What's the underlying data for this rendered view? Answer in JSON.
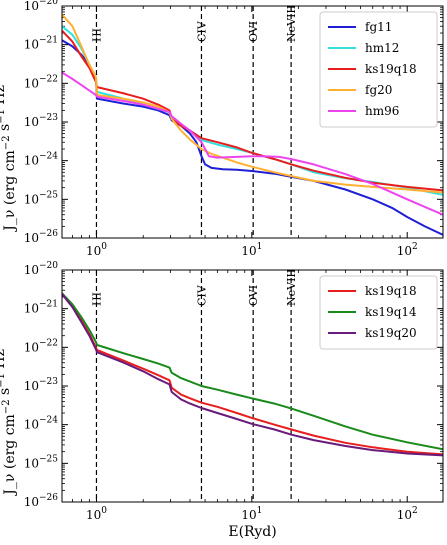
{
  "chart_data": [
    {
      "type": "line",
      "panel": "top",
      "xscale": "log",
      "yscale": "log",
      "xlim": [
        0.6,
        170
      ],
      "ylim": [
        1e-26,
        1e-20
      ],
      "xlabel": "",
      "ylabel": "J_ν (erg cm⁻² s⁻¹ Hz⁻¹ Sr⁻¹)",
      "x_ticks": [
        {
          "value": 1,
          "label": "10^0"
        },
        {
          "value": 10,
          "label": "10^1"
        },
        {
          "value": 100,
          "label": "10^2"
        }
      ],
      "y_ticks": [
        {
          "value": 1e-20,
          "label": "10^-20"
        },
        {
          "value": 1e-21,
          "label": "10^-21"
        },
        {
          "value": 1e-22,
          "label": "10^-22"
        },
        {
          "value": 1e-23,
          "label": "10^-23"
        },
        {
          "value": 1e-24,
          "label": "10^-24"
        },
        {
          "value": 1e-25,
          "label": "10^-25"
        },
        {
          "value": 1e-26,
          "label": "10^-26"
        }
      ],
      "vlines": [
        {
          "x": 1.0,
          "label": "HI"
        },
        {
          "x": 4.74,
          "label": "CIV"
        },
        {
          "x": 10.2,
          "label": "OVI"
        },
        {
          "x": 17.9,
          "label": "NeVIII"
        }
      ],
      "legend": "top-right",
      "series": [
        {
          "name": "fg11",
          "color": "#1f1fd6",
          "x": [
            0.6,
            0.7,
            0.8,
            0.9,
            0.99,
            1.01,
            1.5,
            2.0,
            2.5,
            2.95,
            3.05,
            3.5,
            4.0,
            4.4,
            4.74,
            5.0,
            5.5,
            6.5,
            8.0,
            10.0,
            14.0,
            18.0,
            25.0,
            40.0,
            60.0,
            80.0,
            100.0,
            130.0,
            170.0
          ],
          "y": [
            1.3e-21,
            9e-22,
            5.5e-22,
            3e-22,
            1.4e-22,
            4e-23,
            3e-23,
            2.5e-23,
            2e-23,
            1.5e-23,
            1.1e-23,
            8e-24,
            5e-24,
            3e-24,
            1.3e-24,
            8e-25,
            6.5e-25,
            6e-25,
            5.8e-25,
            5.4e-25,
            4.6e-25,
            3.8e-25,
            3e-25,
            1.8e-25,
            1e-25,
            6e-26,
            3.5e-26,
            2e-26,
            1.2e-26
          ]
        },
        {
          "name": "hm12",
          "color": "#33e0e0",
          "x": [
            0.6,
            0.7,
            0.8,
            0.9,
            0.99,
            1.01,
            1.5,
            2.0,
            2.95,
            3.05,
            4.0,
            4.74,
            6.0,
            8.0,
            10.0,
            14.0,
            18.0,
            25.0,
            40.0,
            60.0,
            100.0,
            170.0
          ],
          "y": [
            3e-21,
            1.8e-21,
            8e-22,
            3e-22,
            1.3e-22,
            6e-23,
            4e-23,
            2.8e-23,
            1.8e-23,
            1.2e-23,
            6e-24,
            3.4e-24,
            2.6e-24,
            2e-24,
            1.6e-24,
            1.1e-24,
            8e-25,
            5e-25,
            3.5e-25,
            2.8e-25,
            2e-25,
            1.3e-25
          ]
        },
        {
          "name": "ks19q18",
          "color": "#e81e1e",
          "x": [
            0.6,
            0.7,
            0.8,
            0.9,
            0.99,
            1.01,
            1.5,
            2.0,
            2.5,
            2.95,
            3.05,
            3.5,
            4.0,
            4.74,
            6.0,
            8.0,
            10.0,
            14.0,
            18.0,
            25.0,
            40.0,
            60.0,
            100.0,
            170.0
          ],
          "y": [
            2.3e-21,
            1.2e-21,
            5e-22,
            2.5e-22,
            1.1e-22,
            8e-23,
            5.5e-23,
            4e-23,
            2.8e-23,
            2e-23,
            1.3e-23,
            8e-24,
            6e-24,
            3.8e-24,
            3e-24,
            2.2e-24,
            1.6e-24,
            1.1e-24,
            8e-25,
            5.5e-25,
            3.6e-25,
            2.7e-25,
            2.1e-25,
            1.7e-25
          ]
        },
        {
          "name": "fg20",
          "color": "#ffb030",
          "x": [
            0.6,
            0.7,
            0.8,
            0.9,
            0.99,
            1.01,
            1.5,
            2.0,
            2.5,
            2.95,
            3.05,
            3.5,
            4.0,
            4.74,
            5.5,
            6.5,
            8.0,
            10.0,
            14.0,
            18.0,
            25.0,
            40.0,
            60.0,
            100.0,
            170.0
          ],
          "y": [
            6e-21,
            3e-21,
            9e-22,
            3e-22,
            1.5e-22,
            5e-23,
            4e-23,
            3.2e-23,
            2.5e-23,
            1.8e-23,
            1.2e-23,
            6e-24,
            3.5e-24,
            2e-24,
            1.5e-24,
            1.2e-24,
            9e-25,
            7e-25,
            5e-25,
            4e-25,
            3e-25,
            2.4e-25,
            2.1e-25,
            1.8e-25,
            1.5e-25
          ]
        },
        {
          "name": "hm96",
          "color": "#ee44ee",
          "x": [
            0.6,
            0.7,
            0.8,
            0.9,
            0.99,
            1.01,
            1.5,
            2.0,
            2.5,
            2.95,
            3.05,
            3.5,
            4.0,
            4.74,
            5.3,
            6.0,
            8.0,
            10.0,
            12.0,
            15.0,
            18.0,
            25.0,
            40.0,
            60.0,
            100.0,
            170.0
          ],
          "y": [
            1.9e-22,
            1.3e-22,
            9e-23,
            6.5e-23,
            5e-23,
            4.5e-23,
            3.5e-23,
            2.8e-23,
            2.2e-23,
            1.8e-23,
            1.4e-23,
            9e-24,
            6e-24,
            3e-24,
            1.3e-24,
            1.2e-24,
            1.25e-24,
            1.3e-24,
            1.3e-24,
            1.25e-24,
            1.1e-24,
            8e-25,
            4.5e-25,
            2.5e-25,
            1e-25,
            4e-26
          ]
        }
      ]
    },
    {
      "type": "line",
      "panel": "bottom",
      "xscale": "log",
      "yscale": "log",
      "xlim": [
        0.6,
        170
      ],
      "ylim": [
        1e-26,
        1e-20
      ],
      "xlabel": "E(Ryd)",
      "ylabel": "J_ν (erg cm⁻² s⁻¹ Hz⁻¹ Sr⁻¹)",
      "x_ticks": [
        {
          "value": 1,
          "label": "10^0"
        },
        {
          "value": 10,
          "label": "10^1"
        },
        {
          "value": 100,
          "label": "10^2"
        }
      ],
      "y_ticks": [
        {
          "value": 1e-20,
          "label": "10^-20"
        },
        {
          "value": 1e-21,
          "label": "10^-21"
        },
        {
          "value": 1e-22,
          "label": "10^-22"
        },
        {
          "value": 1e-23,
          "label": "10^-23"
        },
        {
          "value": 1e-24,
          "label": "10^-24"
        },
        {
          "value": 1e-25,
          "label": "10^-25"
        },
        {
          "value": 1e-26,
          "label": "10^-26"
        }
      ],
      "vlines": [
        {
          "x": 1.0,
          "label": "HI"
        },
        {
          "x": 4.74,
          "label": "CIV"
        },
        {
          "x": 10.2,
          "label": "OVI"
        },
        {
          "x": 17.9,
          "label": "NeVIII"
        }
      ],
      "legend": "top-right",
      "series": [
        {
          "name": "ks19q18",
          "color": "#e81e1e",
          "x": [
            0.6,
            0.7,
            0.8,
            0.9,
            0.99,
            1.01,
            1.5,
            2.0,
            2.5,
            2.95,
            3.05,
            3.5,
            4.0,
            4.74,
            6.0,
            8.0,
            10.0,
            14.0,
            18.0,
            25.0,
            40.0,
            60.0,
            100.0,
            170.0
          ],
          "y": [
            2.5e-21,
            1.2e-21,
            5e-22,
            2.2e-22,
            1e-22,
            8.5e-23,
            4.5e-23,
            2.8e-23,
            1.9e-23,
            1.4e-23,
            9e-24,
            6e-24,
            4.8e-24,
            3.7e-24,
            2.9e-24,
            2e-24,
            1.5e-24,
            1e-24,
            7.5e-25,
            5.2e-25,
            3.4e-25,
            2.6e-25,
            2e-25,
            1.7e-25
          ]
        },
        {
          "name": "ks19q14",
          "color": "#1a8a1a",
          "x": [
            0.6,
            0.7,
            0.8,
            0.9,
            0.99,
            1.01,
            1.5,
            2.0,
            2.5,
            2.95,
            3.05,
            3.5,
            4.0,
            4.74,
            6.0,
            8.0,
            10.0,
            14.0,
            18.0,
            25.0,
            40.0,
            60.0,
            100.0,
            170.0
          ],
          "y": [
            2.5e-21,
            1.3e-21,
            6e-22,
            2.8e-22,
            1.4e-22,
            1.15e-22,
            7e-23,
            5e-23,
            3.8e-23,
            3e-23,
            2.2e-23,
            1.6e-23,
            1.3e-23,
            1e-23,
            8e-24,
            6e-24,
            4.8e-24,
            3.5e-24,
            2.6e-24,
            1.7e-24,
            9e-25,
            5.5e-25,
            3.5e-25,
            2.3e-25
          ]
        },
        {
          "name": "ks19q20",
          "color": "#6a1a7a",
          "x": [
            0.6,
            0.7,
            0.8,
            0.9,
            0.99,
            1.01,
            1.5,
            2.0,
            2.5,
            2.95,
            3.05,
            3.5,
            4.0,
            4.74,
            6.0,
            8.0,
            10.0,
            14.0,
            18.0,
            25.0,
            40.0,
            60.0,
            100.0,
            170.0
          ],
          "y": [
            2.4e-21,
            1.1e-21,
            4.5e-22,
            2e-22,
            9e-23,
            7.5e-23,
            4e-23,
            2.4e-23,
            1.5e-23,
            1.1e-23,
            7e-24,
            4.5e-24,
            3.5e-24,
            2.7e-24,
            2e-24,
            1.4e-24,
            1.05e-24,
            7.5e-25,
            5.5e-25,
            4e-25,
            2.8e-25,
            2.2e-25,
            1.8e-25,
            1.6e-25
          ]
        }
      ]
    }
  ]
}
